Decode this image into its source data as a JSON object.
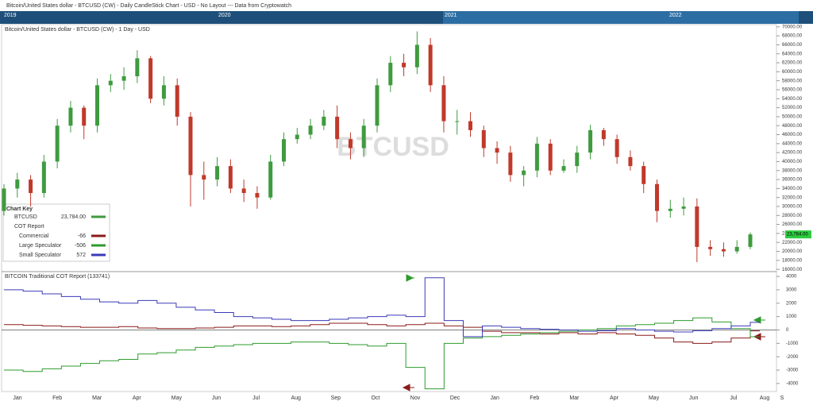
{
  "header": {
    "title": "Bitcoin/United States dollar - BTCUSD (CW) - Daily CandleStick Chart - USD - No Layout --- Data from Cryptowatch"
  },
  "navigator": {
    "years": [
      "2019",
      "2020",
      "2021",
      "2022"
    ]
  },
  "chart_data": [
    {
      "type": "candlestick",
      "title": "Bitcoin/United States dollar - BTCUSD (CW) - 1 Day - USD",
      "watermark": "BTCUSD",
      "open": [
        29000,
        34000,
        36000,
        33000,
        40000,
        48000,
        52000,
        48000,
        57000,
        58000,
        59000,
        63000,
        54000,
        57000,
        50000,
        37000,
        36000,
        39000,
        34000,
        33000,
        32000,
        40000,
        45000,
        46000,
        48000,
        50000,
        45000,
        43000,
        48000,
        57000,
        62000,
        61000,
        66000,
        57000,
        49000,
        49000,
        47000,
        43000,
        42000,
        37000,
        38000,
        44000,
        38000,
        39000,
        42000,
        47000,
        45000,
        41000,
        39000,
        35000,
        29000,
        29500,
        30000,
        21000,
        20500,
        20000,
        21000
      ],
      "high": [
        35000,
        37500,
        37000,
        41500,
        49500,
        53500,
        52500,
        58500,
        59500,
        61000,
        64800,
        63500,
        59000,
        58500,
        51000,
        40000,
        41000,
        40500,
        36000,
        34500,
        41500,
        46500,
        47500,
        49500,
        51500,
        52500,
        46500,
        49500,
        58500,
        63500,
        64000,
        69000,
        67500,
        59000,
        51500,
        51000,
        48000,
        44500,
        43500,
        39000,
        45500,
        45000,
        40500,
        43500,
        48200,
        47500,
        46000,
        42500,
        40000,
        36000,
        31500,
        32000,
        31800,
        22500,
        22000,
        22500,
        24200
      ],
      "low": [
        28000,
        32000,
        30000,
        32000,
        38500,
        46500,
        45000,
        46500,
        55500,
        56000,
        57500,
        53000,
        52500,
        48000,
        30000,
        31500,
        34500,
        33000,
        31000,
        29500,
        31500,
        39000,
        44000,
        45000,
        47000,
        43000,
        40500,
        41000,
        46500,
        55500,
        59000,
        59500,
        55500,
        46500,
        46000,
        45500,
        41000,
        39500,
        35500,
        34500,
        36500,
        37000,
        37500,
        37500,
        40500,
        43500,
        39500,
        38000,
        33000,
        26500,
        27500,
        28000,
        17600,
        19000,
        18800,
        19500,
        20500
      ],
      "close": [
        34000,
        36000,
        33000,
        40000,
        48000,
        52000,
        48000,
        57000,
        58000,
        59000,
        63000,
        54000,
        57000,
        50000,
        37000,
        36000,
        39000,
        34000,
        33000,
        32000,
        40000,
        45000,
        46000,
        48000,
        50000,
        45000,
        43000,
        48000,
        57000,
        62000,
        61000,
        66000,
        57000,
        49000,
        49000,
        47000,
        43000,
        42000,
        37000,
        38000,
        44000,
        38000,
        39000,
        42000,
        47000,
        45000,
        41000,
        39000,
        35000,
        29000,
        29500,
        30000,
        21000,
        20500,
        20000,
        21000,
        23784
      ],
      "price_label": "23,784.00",
      "up_color": "#3f9b3f",
      "down_color": "#c0392b",
      "tag_color": "#2ecc40",
      "ylim": [
        15500,
        70500
      ],
      "yticks": [
        {
          "value": 16000,
          "label": "16000.00"
        },
        {
          "value": 18000,
          "label": "18000.00"
        },
        {
          "value": 20000,
          "label": "20000.00"
        },
        {
          "value": 22000,
          "label": "22000.00"
        },
        {
          "value": 24000,
          "label": "24000.00"
        },
        {
          "value": 26000,
          "label": "26000.00"
        },
        {
          "value": 28000,
          "label": "28000.00"
        },
        {
          "value": 30000,
          "label": "30000.00"
        },
        {
          "value": 32000,
          "label": "32000.00"
        },
        {
          "value": 34000,
          "label": "34000.00"
        },
        {
          "value": 36000,
          "label": "36000.00"
        },
        {
          "value": 38000,
          "label": "38000.00"
        },
        {
          "value": 40000,
          "label": "40000.00"
        },
        {
          "value": 42000,
          "label": "42000.00"
        },
        {
          "value": 44000,
          "label": "44000.00"
        },
        {
          "value": 46000,
          "label": "46000.00"
        },
        {
          "value": 48000,
          "label": "48000.00"
        },
        {
          "value": 50000,
          "label": "50000.00"
        },
        {
          "value": 52000,
          "label": "52000.00"
        },
        {
          "value": 54000,
          "label": "54000.00"
        },
        {
          "value": 56000,
          "label": "56000.00"
        },
        {
          "value": 58000,
          "label": "58000.00"
        },
        {
          "value": 60000,
          "label": "60000.00"
        },
        {
          "value": 62000,
          "label": "62000.00"
        },
        {
          "value": 64000,
          "label": "64000.00"
        },
        {
          "value": 66000,
          "label": "66000.00"
        },
        {
          "value": 68000,
          "label": "68000.00"
        },
        {
          "value": 70000,
          "label": "70000.00"
        }
      ],
      "key": {
        "title": "Chart Key",
        "symbol": "BTCUSD",
        "group": "COT Report"
      }
    },
    {
      "type": "line",
      "title": "BITCOIN Traditional COT Report (133741)",
      "series": [
        {
          "name": "Commercial",
          "color": "#8b1a1a",
          "values": [
            400,
            350,
            300,
            250,
            200,
            200,
            250,
            150,
            100,
            100,
            150,
            200,
            300,
            300,
            250,
            300,
            400,
            500,
            500,
            400,
            300,
            400,
            500,
            300,
            200,
            -100,
            -200,
            -200,
            -300,
            -200,
            -300,
            -200,
            -300,
            -400,
            -600,
            -900,
            -1000,
            -900,
            -600,
            -66
          ]
        },
        {
          "name": "Large Speculator",
          "color": "#2e9b2e",
          "values": [
            -3000,
            -3100,
            -2900,
            -2700,
            -2500,
            -2300,
            -2200,
            -1800,
            -1700,
            -1500,
            -1300,
            -1200,
            -1100,
            -1000,
            -1000,
            -900,
            -900,
            -1000,
            -1100,
            -1200,
            -1000,
            -2800,
            -4400,
            -1000,
            -600,
            -500,
            -400,
            -300,
            -200,
            -100,
            0,
            100,
            300,
            400,
            500,
            700,
            900,
            600,
            100,
            -506
          ]
        },
        {
          "name": "Small Speculator",
          "color": "#3a3ab8",
          "values": [
            3000,
            2900,
            2700,
            2500,
            2300,
            2100,
            2000,
            2200,
            2000,
            1700,
            1500,
            1300,
            1000,
            900,
            800,
            700,
            700,
            800,
            900,
            1000,
            1100,
            1000,
            3900,
            700,
            -500,
            300,
            200,
            100,
            50,
            0,
            -100,
            -50,
            100,
            0,
            -100,
            -150,
            -50,
            100,
            300,
            572
          ]
        }
      ],
      "ylim": [
        -4600,
        4300
      ],
      "yticks": [
        -4000,
        -3000,
        -2000,
        -1000,
        0,
        1000,
        2000,
        3000,
        4000
      ],
      "x_labels": [
        "Jan",
        "Feb",
        "Mar",
        "Apr",
        "May",
        "Jun",
        "Jul",
        "Aug",
        "Sep",
        "Oct",
        "Nov",
        "Dec",
        "Jan",
        "Feb",
        "Mar",
        "Apr",
        "May",
        "Jun",
        "Jul",
        "Aug",
        "S"
      ]
    }
  ]
}
